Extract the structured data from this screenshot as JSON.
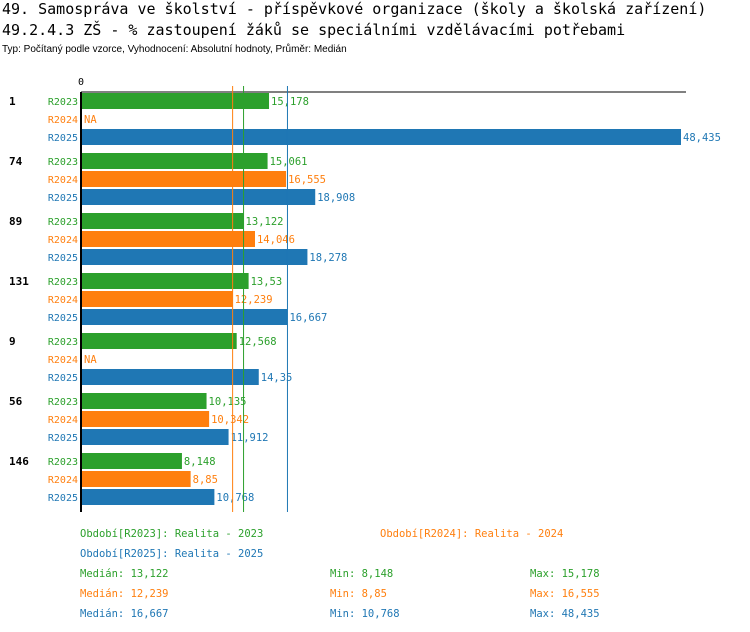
{
  "header": {
    "title": "49. Samospráva ve školství - příspěvkové organizace (školy a školská zařízení)",
    "subtitle": "49.2.4.3 ZŠ - % zastoupení žáků se speciálními vzdělávacími potřebami",
    "info": "Typ: Počítaný podle vzorce, Vyhodnocení: Absolutní hodnoty, Průměr: Medián"
  },
  "chart_data": {
    "type": "bar",
    "orientation": "horizontal",
    "xlim": [
      0,
      48.435
    ],
    "x_tick_label": "0",
    "categories": [
      "1",
      "74",
      "89",
      "131",
      "9",
      "56",
      "146"
    ],
    "series": [
      {
        "name": "R2023",
        "color": "#2ca02c",
        "values": [
          15.178,
          15.061,
          13.122,
          13.53,
          12.568,
          10.135,
          8.148
        ],
        "labels": [
          "15,178",
          "15,061",
          "13,122",
          "13,53",
          "12,568",
          "10,135",
          "8,148"
        ]
      },
      {
        "name": "R2024",
        "color": "#ff7f0e",
        "values": [
          null,
          16.555,
          14.046,
          12.239,
          null,
          10.342,
          8.85
        ],
        "labels": [
          "NA",
          "16,555",
          "14,046",
          "12,239",
          "NA",
          "10,342",
          "8,85"
        ]
      },
      {
        "name": "R2025",
        "color": "#1f77b4",
        "values": [
          48.435,
          18.908,
          18.278,
          16.667,
          14.35,
          11.912,
          10.768
        ],
        "labels": [
          "48,435",
          "18,908",
          "18,278",
          "16,667",
          "14,35",
          "11,912",
          "10,768"
        ]
      }
    ],
    "medians": [
      13.122,
      12.239,
      16.667
    ]
  },
  "legend": {
    "periods": [
      "Období[R2023]: Realita - 2023",
      "Období[R2024]: Realita - 2024",
      "Období[R2025]: Realita - 2025"
    ],
    "stats": [
      {
        "median": "Medián: 13,122",
        "min": "Min: 8,148",
        "max": "Max: 15,178"
      },
      {
        "median": "Medián: 12,239",
        "min": "Min: 8,85",
        "max": "Max: 16,555"
      },
      {
        "median": "Medián: 16,667",
        "min": "Min: 10,768",
        "max": "Max: 48,435"
      }
    ]
  }
}
